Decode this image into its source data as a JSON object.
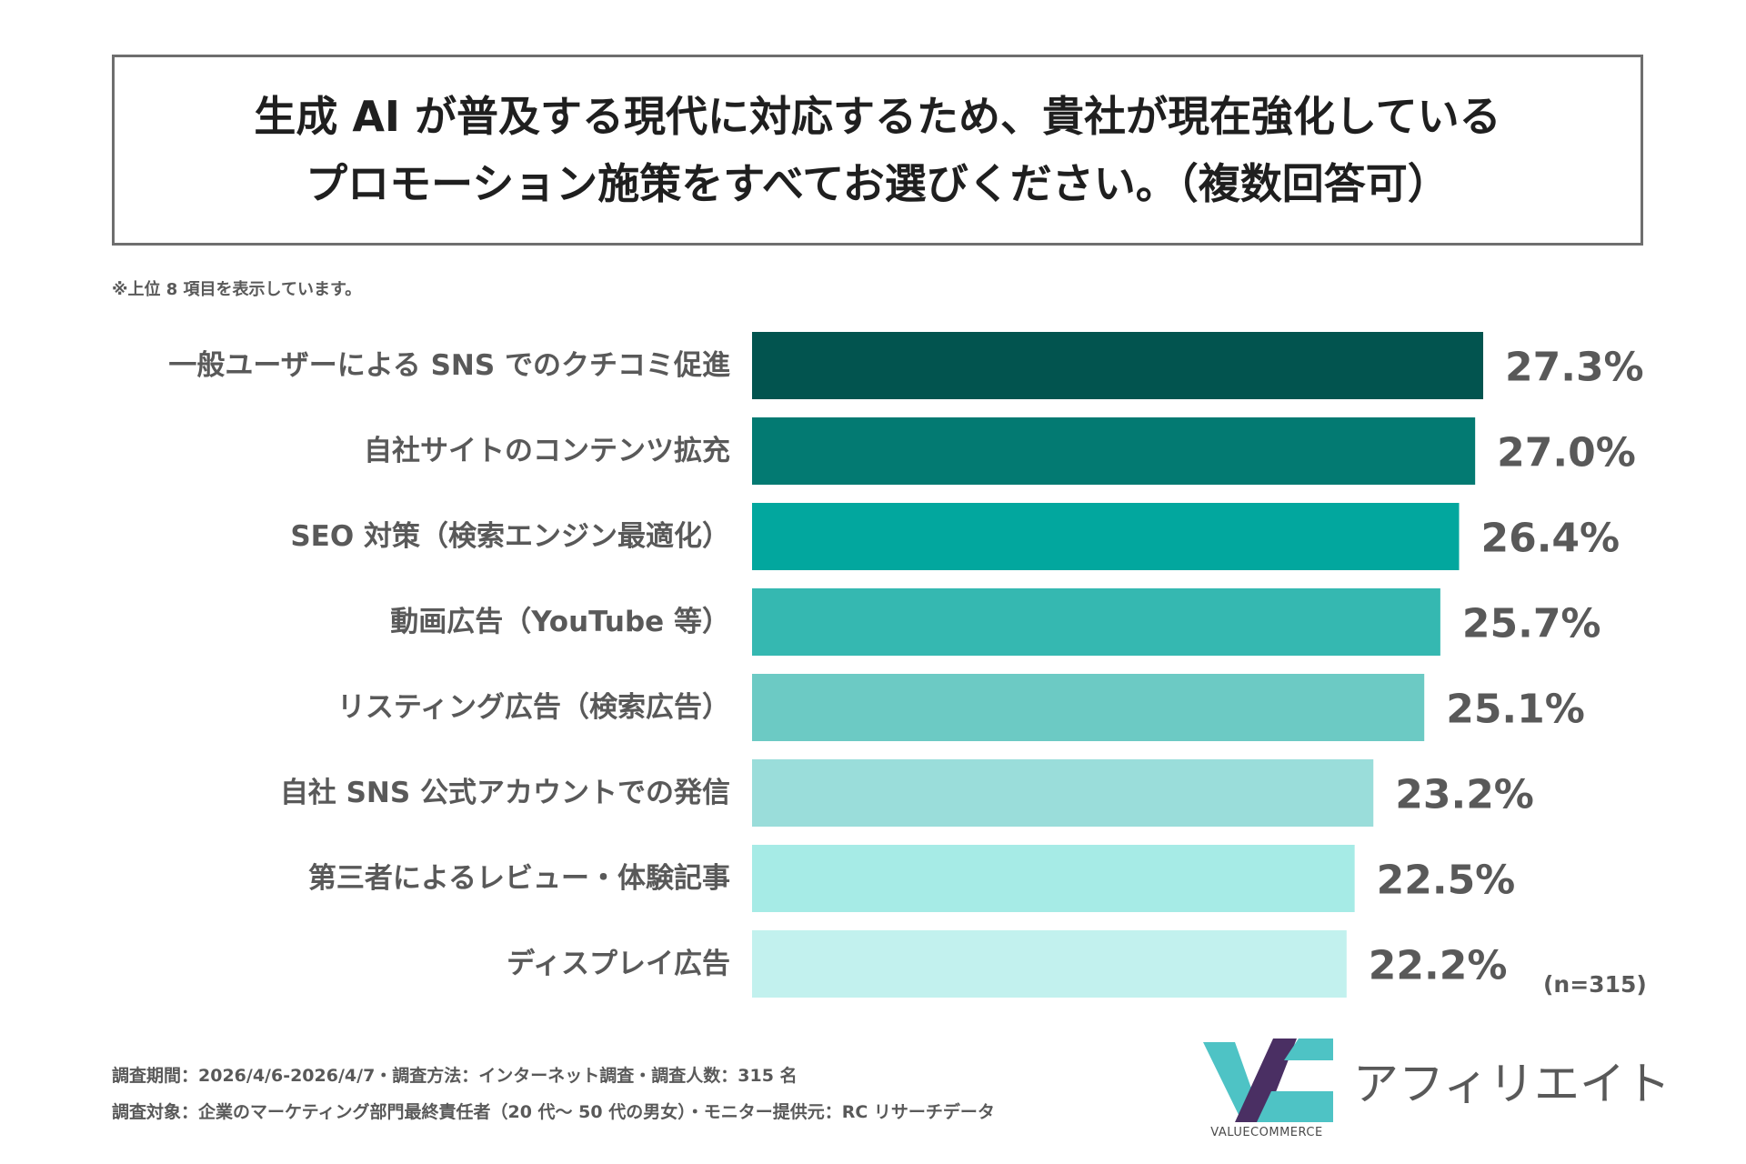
{
  "title": {
    "line1": "生成 AI が普及する現代に対応するため、貴社が現在強化している",
    "line2": "プロモーション施策をすべてお選びください。（複数回答可）"
  },
  "note": "※上位 8 項目を表示しています。",
  "chart_data": {
    "type": "bar",
    "orientation": "horizontal",
    "categories": [
      "一般ユーザーによる SNS でのクチコミ促進",
      "自社サイトのコンテンツ拡充",
      "SEO 対策（検索エンジン最適化）",
      "動画広告（YouTube 等）",
      "リスティング広告（検索広告）",
      "自社 SNS 公式アカウントでの発信",
      "第三者によるレビュー・体験記事",
      "ディスプレイ広告"
    ],
    "values": [
      27.3,
      27.0,
      26.4,
      25.7,
      25.1,
      23.2,
      22.5,
      22.2
    ],
    "value_labels": [
      "27.3%",
      "27.0%",
      "26.4%",
      "25.7%",
      "25.1%",
      "23.2%",
      "22.5%",
      "22.2%"
    ],
    "bar_colors": [
      "#02544f",
      "#037a72",
      "#02a79e",
      "#35b8b1",
      "#6ccac4",
      "#9addda",
      "#a6ebe6",
      "#c2f1ee"
    ],
    "xlim": [
      0,
      27.3
    ],
    "grid": false,
    "legend": "none"
  },
  "sample_size": "(n=315)",
  "footer": {
    "line1": "調査期間：2026/4/6-2026/4/7・調査方法：インターネット調査・調査人数：315 名",
    "line2": "調査対象：企業のマーケティング部門最終責任者（20 代～ 50 代の男女）・モニター提供元：RC リサーチデータ"
  },
  "logo": {
    "name": "アフィリエイト",
    "brand": "VALUECOMMERCE",
    "colors": {
      "teal": "#4ec3c5",
      "purple": "#4a2f63"
    }
  }
}
